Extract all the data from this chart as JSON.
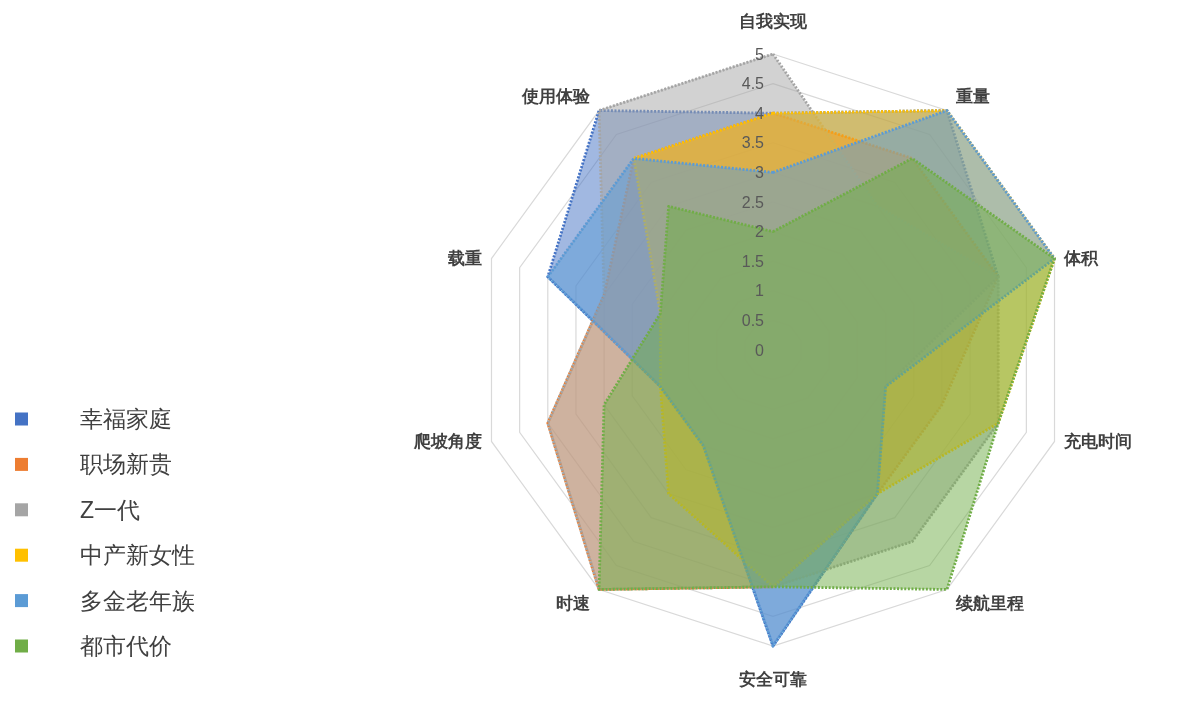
{
  "chart_data": {
    "type": "radar",
    "categories": [
      "自我实现",
      "重量",
      "体积",
      "充电时间",
      "续航里程",
      "安全可靠",
      "时速",
      "爬坡角度",
      "载重",
      "使用体验"
    ],
    "series": [
      {
        "name": "幸福家庭",
        "color": "#4472c4",
        "values": [
          4,
          5,
          4,
          2,
          3,
          5,
          2,
          2,
          4,
          5
        ]
      },
      {
        "name": "职场新贵",
        "color": "#ed7d31",
        "values": [
          4,
          4,
          4,
          3,
          3,
          4,
          5,
          4,
          3,
          4
        ]
      },
      {
        "name": "Z一代",
        "color": "#a5a5a5",
        "values": [
          5,
          3,
          4,
          4,
          4,
          4,
          5,
          4,
          3,
          5
        ]
      },
      {
        "name": "中产新女性",
        "color": "#ffc000",
        "values": [
          4,
          5,
          5,
          4,
          3,
          4,
          3,
          2,
          2,
          4
        ]
      },
      {
        "name": "多金老年族",
        "color": "#5b9bd5",
        "values": [
          3,
          5,
          5,
          2,
          3,
          5,
          2,
          2,
          4,
          4
        ]
      },
      {
        "name": "都市代价",
        "color": "#70ad47",
        "values": [
          2,
          4,
          5,
          4,
          5,
          4,
          5,
          3,
          2,
          3
        ]
      }
    ],
    "ylim": [
      0,
      5
    ],
    "yticks": [
      0,
      0.5,
      1,
      1.5,
      2,
      2.5,
      3,
      3.5,
      4,
      4.5,
      5
    ],
    "grid": true,
    "legend": "bottom left",
    "line_style": "dotted"
  }
}
